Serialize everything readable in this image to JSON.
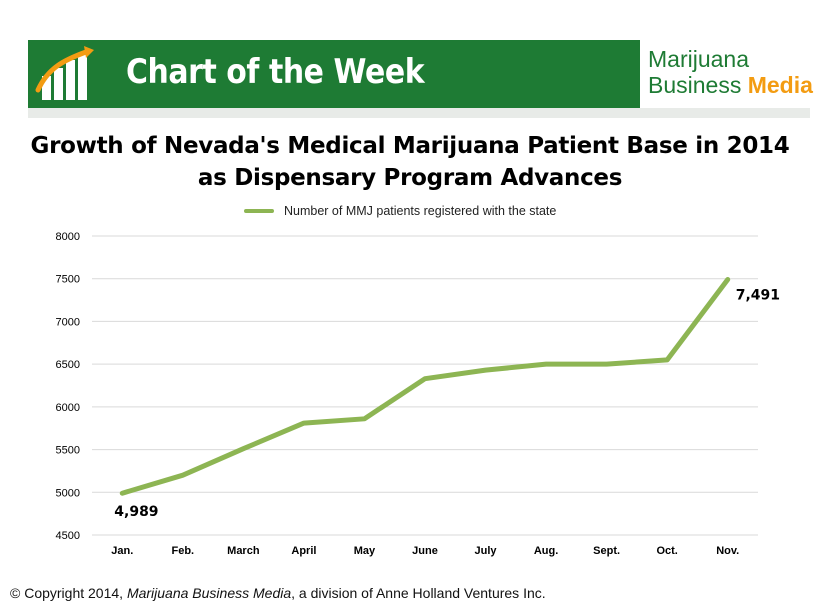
{
  "banner": {
    "title": "Chart of the Week",
    "brand_line1": "Marijuana",
    "brand_line2_main": "Business ",
    "brand_line2_accent": "Media",
    "colors": {
      "banner_green": "#1e7b34",
      "accent_orange": "#f39c12"
    }
  },
  "footer": {
    "prefix": "© Copyright  2014, ",
    "company": "Marijuana Business Media",
    "suffix": ", a division of Anne Holland Ventures Inc."
  },
  "chart_data": {
    "type": "line",
    "title_line1": "Growth of Nevada's Medical Marijuana Patient Base in 2014",
    "title_line2": "as Dispensary Program Advances",
    "categories": [
      "Jan.",
      "Feb.",
      "March",
      "April",
      "May",
      "June",
      "July",
      "Aug.",
      "Sept.",
      "Oct.",
      "Nov."
    ],
    "series": [
      {
        "name": "Number of MMJ patients registered with the state",
        "values": [
          4989,
          5200,
          5510,
          5810,
          5860,
          6330,
          6430,
          6500,
          6500,
          6550,
          7491
        ],
        "color": "#8db553"
      }
    ],
    "data_labels": [
      {
        "index": 0,
        "text": "4,989"
      },
      {
        "index": 10,
        "text": "7,491"
      }
    ],
    "ylim": [
      4500,
      8000
    ],
    "yticks": [
      4500,
      5000,
      5500,
      6000,
      6500,
      7000,
      7500,
      8000
    ],
    "grid": true,
    "legend_position": "top-center",
    "xlabel": "",
    "ylabel": ""
  }
}
